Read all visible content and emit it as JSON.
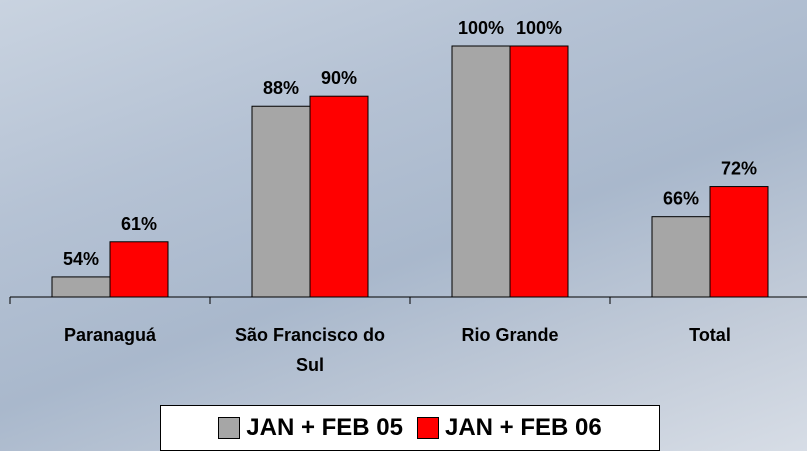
{
  "chart_data": {
    "type": "bar",
    "categories": [
      "Paranaguá",
      "São Francisco do Sul",
      "Rio Grande",
      "Total"
    ],
    "series": [
      {
        "name": "JAN + FEB 05",
        "color": "#a6a6a6",
        "values": [
          54,
          88,
          100,
          66
        ],
        "value_labels": [
          "54%",
          "88%",
          "100%",
          "66%"
        ]
      },
      {
        "name": "JAN + FEB 06",
        "color": "#ff0000",
        "values": [
          61,
          90,
          100,
          72
        ],
        "value_labels": [
          "61%",
          "90%",
          "100%",
          "72%"
        ]
      }
    ],
    "ylim": [
      50,
      100
    ],
    "legend": "bottom"
  }
}
